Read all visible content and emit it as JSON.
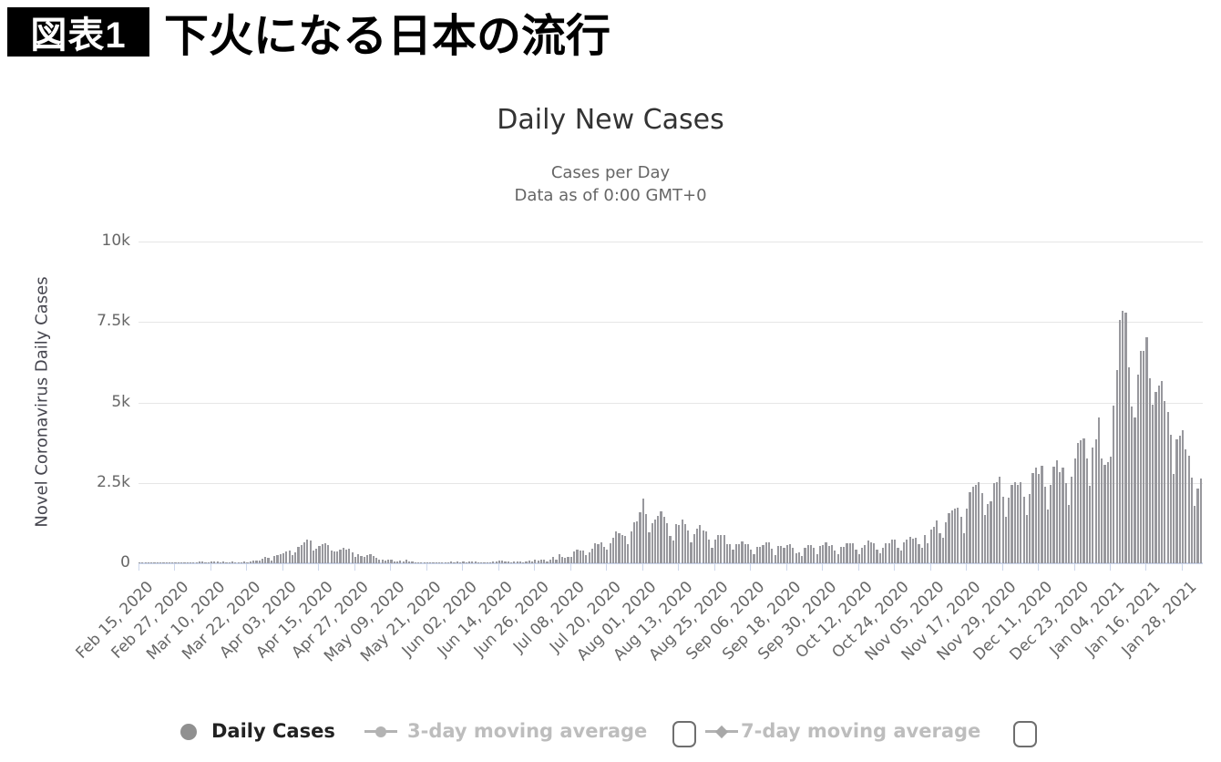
{
  "header": {
    "badge": "図表1",
    "title": "下火になる日本の流行"
  },
  "chart": {
    "title": "Daily New Cases",
    "subtitle1": "Cases per Day",
    "subtitle2": "Data as of 0:00 GMT+0",
    "y_axis_title": "Novel Coronavirus Daily Cases",
    "colors": {
      "bar": "#98989d",
      "gridline": "#e6e6e6",
      "axis_line": "#ccd6eb",
      "title": "#333333",
      "subtitle": "#666666",
      "tick_label": "#666666",
      "legend_active": "#222222",
      "legend_inactive": "#bdbdbd",
      "badge_bg": "#000000",
      "badge_fg": "#ffffff"
    },
    "legend": {
      "items": [
        {
          "label": "Daily Cases",
          "marker": "circle",
          "active": true,
          "checkbox": false,
          "checked": false
        },
        {
          "label": "3-day moving average",
          "marker": "line-circle",
          "active": false,
          "checkbox": true,
          "checked": false
        },
        {
          "label": "7-day moving average",
          "marker": "line-diamond",
          "active": false,
          "checkbox": true,
          "checked": false
        }
      ]
    }
  },
  "chart_data": {
    "type": "bar",
    "title": "Daily New Cases",
    "subtitle": "Cases per Day — Data as of 0:00 GMT+0",
    "xlabel": "",
    "ylabel": "Novel Coronavirus Daily Cases",
    "ylim": [
      0,
      10000
    ],
    "grid": true,
    "legend_position": "bottom",
    "y_tick_values": [
      0,
      2500,
      5000,
      7500,
      10000
    ],
    "y_tick_labels": [
      "0",
      "2.5k",
      "5k",
      "7.5k",
      "10k"
    ],
    "x_tick_day_interval": 12,
    "x_tick_labels": [
      "Feb 15, 2020",
      "Feb 27, 2020",
      "Mar 10, 2020",
      "Mar 22, 2020",
      "Apr 03, 2020",
      "Apr 15, 2020",
      "Apr 27, 2020",
      "May 09, 2020",
      "May 21, 2020",
      "Jun 02, 2020",
      "Jun 14, 2020",
      "Jun 26, 2020",
      "Jul 08, 2020",
      "Jul 20, 2020",
      "Aug 01, 2020",
      "Aug 13, 2020",
      "Aug 25, 2020",
      "Sep 06, 2020",
      "Sep 18, 2020",
      "Sep 30, 2020",
      "Oct 12, 2020",
      "Oct 24, 2020",
      "Nov 05, 2020",
      "Nov 17, 2020",
      "Nov 29, 2020",
      "Dec 11, 2020",
      "Dec 23, 2020",
      "Jan 04, 2021",
      "Jan 16, 2021",
      "Jan 28, 2021"
    ],
    "start_date": "Feb 15, 2020",
    "end_date": "Feb 03, 2021",
    "series": [
      {
        "name": "Daily Cases",
        "values": [
          8,
          13,
          26,
          24,
          9,
          11,
          13,
          12,
          27,
          12,
          20,
          22,
          24,
          20,
          9,
          15,
          14,
          16,
          33,
          31,
          59,
          47,
          33,
          26,
          54,
          51,
          55,
          40,
          63,
          33,
          15,
          44,
          39,
          39,
          34,
          57,
          39,
          43,
          72,
          93,
          96,
          137,
          194,
          173,
          87,
          225,
          266,
          276,
          320,
          360,
          383,
          252,
          351,
          511,
          579,
          655,
          743,
          717,
          390,
          455,
          549,
          585,
          628,
          566,
          390,
          367,
          378,
          423,
          469,
          434,
          441,
          353,
          203,
          276,
          236,
          193,
          266,
          295,
          218,
          174,
          120,
          123,
          96,
          100,
          115,
          70,
          45,
          79,
          55,
          100,
          57,
          51,
          27,
          31,
          31,
          42,
          39,
          26,
          26,
          14,
          21,
          26,
          33,
          21,
          63,
          41,
          47,
          35,
          50,
          31,
          47,
          46,
          46,
          38,
          21,
          41,
          41,
          39,
          46,
          47,
          74,
          72,
          44,
          56,
          41,
          56,
          56,
          51,
          27,
          56,
          96,
          56,
          105,
          92,
          110,
          100,
          57,
          127,
          194,
          124,
          274,
          207,
          174,
          204,
          206,
          357,
          430,
          407,
          386,
          260,
          333,
          450,
          622,
          597,
          664,
          511,
          418,
          632,
          795,
          981,
          927,
          885,
          838,
          597,
          981,
          1264,
          1305,
          1579,
          1998,
          1540,
          958,
          1239,
          1357,
          1485,
          1605,
          1444,
          1251,
          839,
          697,
          1222,
          1177,
          1358,
          1232,
          1021,
          647,
          913,
          1083,
          1186,
          1034,
          988,
          741,
          495,
          723,
          871,
          883,
          868,
          608,
          598,
          437,
          609,
          598,
          669,
          608,
          608,
          437,
          294,
          508,
          513,
          565,
          644,
          652,
          440,
          267,
          531,
          551,
          490,
          571,
          601,
          480,
          312,
          331,
          216,
          485,
          572,
          571,
          483,
          292,
          534,
          574,
          645,
          540,
          573,
          401,
          281,
          500,
          503,
          625,
          611,
          624,
          437,
          278,
          486,
          553,
          708,
          639,
          624,
          431,
          317,
          481,
          618,
          617,
          738,
          732,
          493,
          406,
          643,
          726,
          809,
          770,
          792,
          608,
          482,
          867,
          620,
          1050,
          1141,
          1331,
          937,
          780,
          1284,
          1547,
          1651,
          1705,
          1722,
          1440,
          948,
          1699,
          2201,
          2392,
          2427,
          2508,
          2168,
          1515,
          1843,
          1930,
          2504,
          2525,
          2684,
          2058,
          1439,
          2030,
          2434,
          2518,
          2442,
          2508,
          2058,
          1514,
          2152,
          2812,
          2971,
          2790,
          3041,
          2388,
          1675,
          2432,
          2994,
          3211,
          2837,
          2983,
          2501,
          1805,
          2688,
          3271,
          3742,
          3832,
          3881,
          3260,
          2403,
          3608,
          3852,
          4520,
          3246,
          3058,
          3158,
          3325,
          4915,
          6004,
          7570,
          7844,
          7790,
          6096,
          4875,
          4527,
          5870,
          6605,
          6600,
          7014,
          5759,
          4925,
          5320,
          5533,
          5653,
          5045,
          4717,
          3990,
          2764,
          3853,
          3971,
          4133,
          3534,
          3344,
          2673,
          1792,
          2324,
          2631
        ]
      }
    ],
    "legend_entries": [
      "Daily Cases",
      "3-day moving average",
      "7-day moving average"
    ]
  }
}
